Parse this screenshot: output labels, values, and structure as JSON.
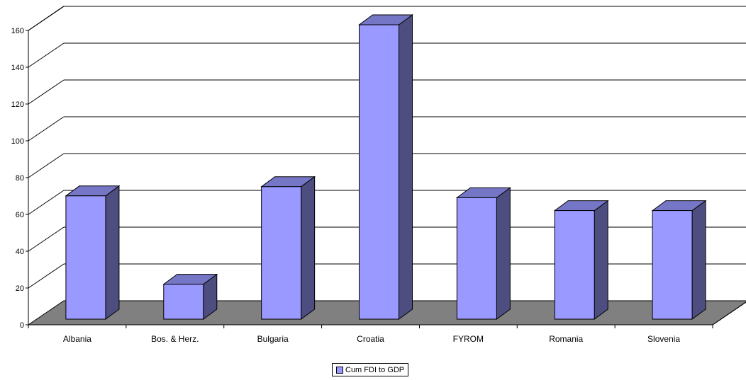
{
  "chart_data": {
    "type": "bar",
    "categories": [
      "Albania",
      "Bos. & Herz.",
      "Bulgaria",
      "Croatia",
      "FYROM",
      "Romania",
      "Slovenia"
    ],
    "series": [
      {
        "name": "Cum FDI to GDP",
        "values": [
          67,
          19,
          72,
          160,
          66,
          59,
          59
        ]
      }
    ],
    "y_ticks": [
      "0",
      "20",
      "40",
      "60",
      "80",
      "100",
      "120",
      "140",
      "160"
    ],
    "ylim": [
      0,
      160
    ],
    "grid": true,
    "three_d": true,
    "legend_position": "bottom",
    "colors": {
      "bar_front": "#9999ff",
      "bar_side": "#4d4d80",
      "bar_top": "#7676c6",
      "floor": "#808080",
      "grid": "#000000"
    }
  }
}
